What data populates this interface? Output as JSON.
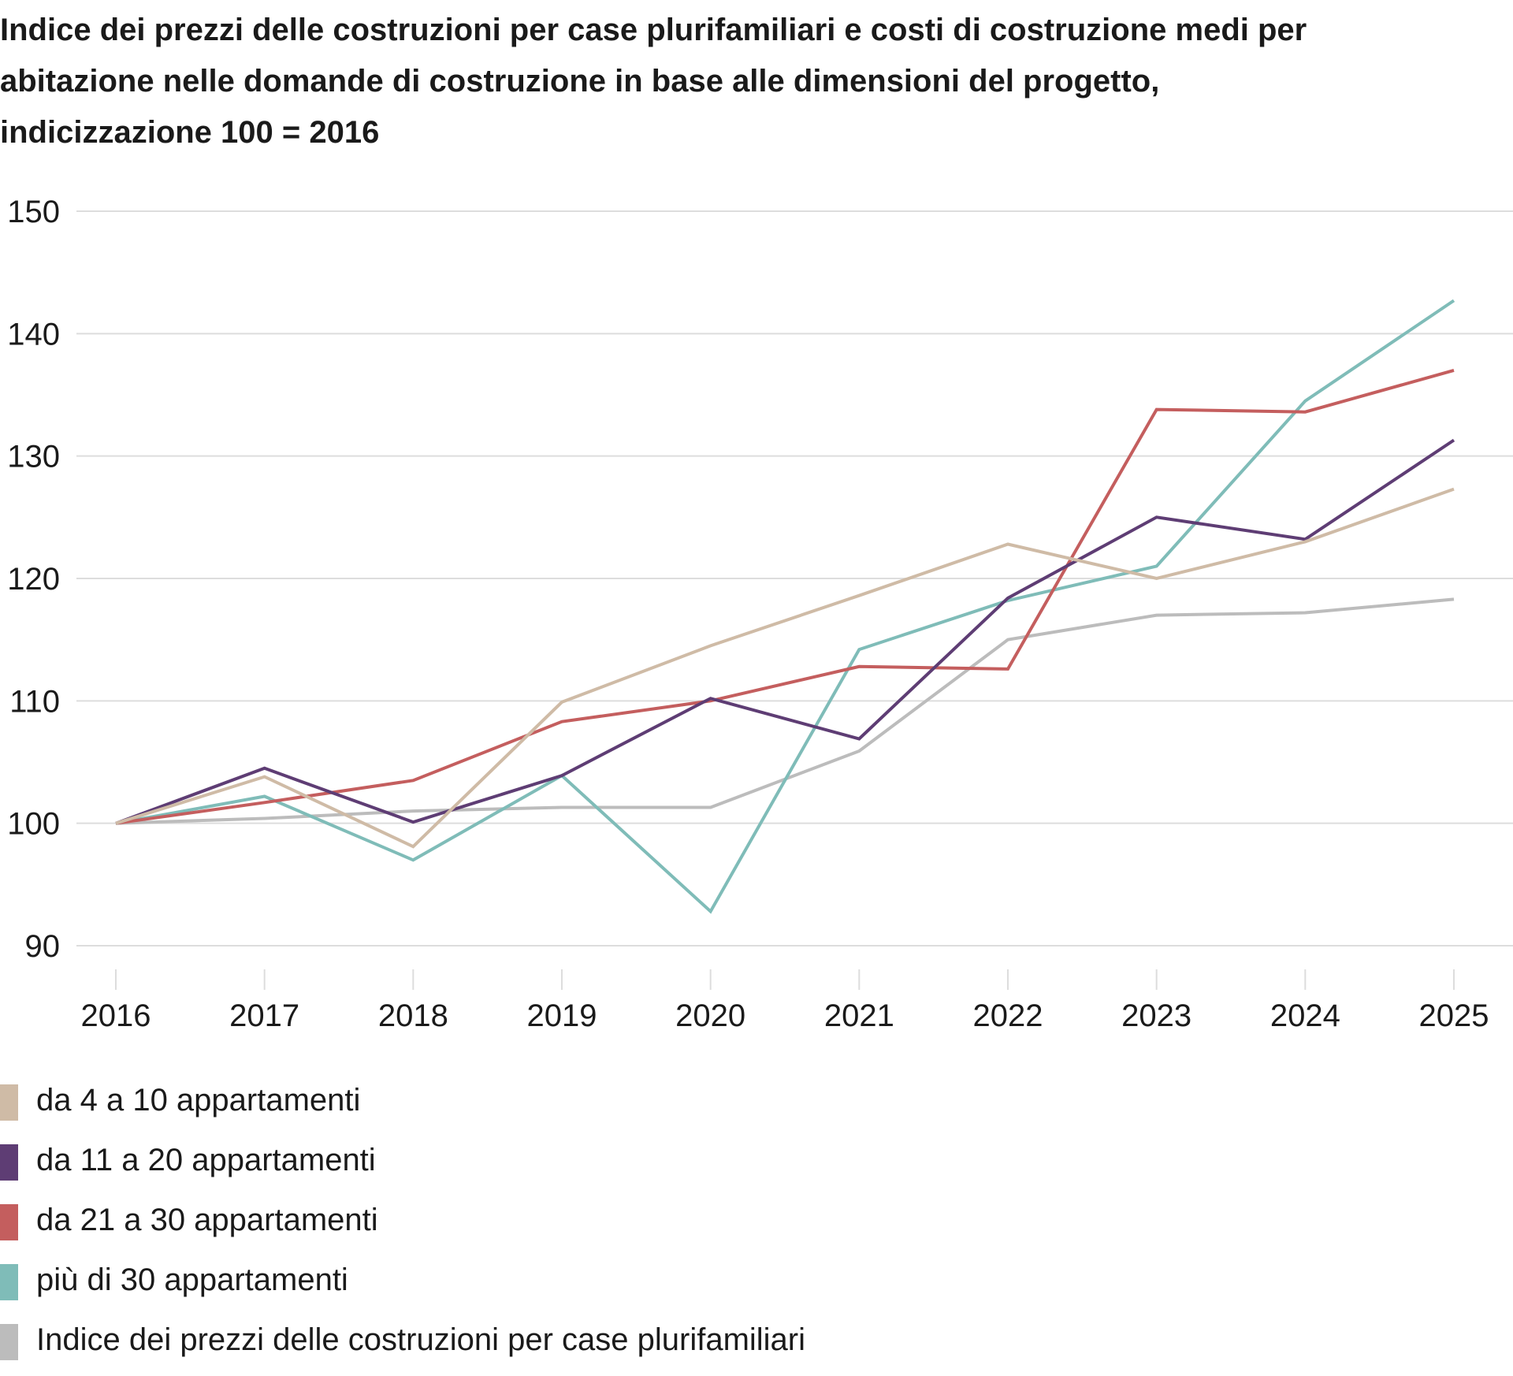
{
  "title_lines": [
    "Indice dei prezzi delle costruzioni per case plurifamiliari e costi di costruzione medi per",
    "abitazione nelle domande di costruzione in base alle dimensioni del progetto,",
    "indicizzazione 100 = 2016"
  ],
  "chart_data": {
    "type": "line",
    "title": "Indice dei prezzi delle costruzioni per case plurifamiliari e costi di costruzione medi per abitazione nelle domande di costruzione in base alle dimensioni del progetto, indicizzazione 100 = 2016",
    "xlabel": "",
    "ylabel": "",
    "x": [
      "2016",
      "2017",
      "2018",
      "2019",
      "2020",
      "2021",
      "2022",
      "2023",
      "2024",
      "2025"
    ],
    "ylim": [
      90,
      150
    ],
    "yticks": [
      90,
      100,
      110,
      120,
      130,
      140,
      150
    ],
    "grid": "horizontal",
    "legend_position": "bottom",
    "series": [
      {
        "name": "da 4 a 10 appartamenti",
        "color": "#cfbba6",
        "values": [
          100,
          103.8,
          98.1,
          109.9,
          114.5,
          118.6,
          122.8,
          120.0,
          123.0,
          127.3
        ]
      },
      {
        "name": "da 11 a 20 appartamenti",
        "color": "#5e3d74",
        "values": [
          100,
          104.5,
          100.1,
          103.9,
          110.2,
          106.9,
          118.4,
          125.0,
          123.2,
          131.3
        ]
      },
      {
        "name": "da 21 a 30 appartamenti",
        "color": "#c45e5e",
        "values": [
          100,
          101.7,
          103.5,
          108.3,
          110.0,
          112.8,
          112.6,
          133.8,
          133.6,
          137.0
        ]
      },
      {
        "name": "più di 30 appartamenti",
        "color": "#7fbcb8",
        "values": [
          100,
          102.2,
          97.0,
          103.9,
          92.8,
          114.2,
          118.2,
          121.0,
          134.5,
          142.7
        ]
      },
      {
        "name": "Indice dei prezzi delle costruzioni per case plurifamiliari",
        "color": "#bcbcbc",
        "values": [
          100,
          100.4,
          101.0,
          101.3,
          101.3,
          105.9,
          115.0,
          117.0,
          117.2,
          118.3
        ]
      }
    ]
  }
}
